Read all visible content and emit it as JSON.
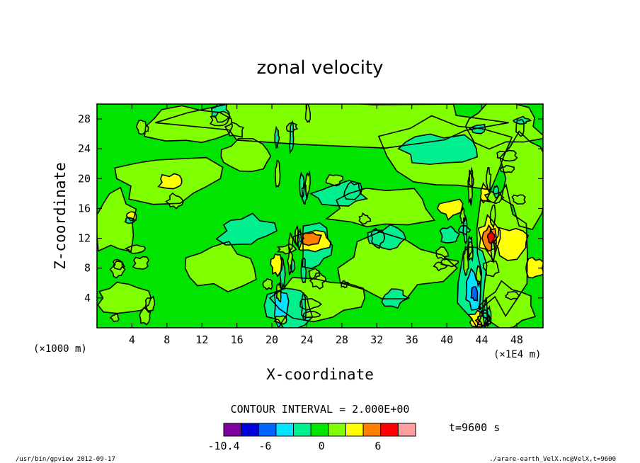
{
  "chart_data": {
    "type": "heatmap",
    "title": "zonal velocity",
    "xlabel": "X-coordinate",
    "ylabel": "Z-coordinate",
    "x_unit": "(×1E4 m)",
    "y_unit": "(×1000 m)",
    "xlim": [
      0,
      51
    ],
    "ylim": [
      0,
      30
    ],
    "x_ticks": [
      4,
      8,
      12,
      16,
      20,
      24,
      28,
      32,
      36,
      40,
      44,
      48
    ],
    "y_ticks": [
      4,
      8,
      12,
      16,
      20,
      24,
      28
    ],
    "contour_interval_text": "CONTOUR INTERVAL = 2.000E+00",
    "time_text": "t=9600 s",
    "colorbar": {
      "colors": [
        "#7f00a0",
        "#0000dc",
        "#0064ff",
        "#00e4ff",
        "#00f090",
        "#00e400",
        "#80ff00",
        "#ffff00",
        "#ff8000",
        "#ff0000",
        "#ffa0a0"
      ],
      "tick_labels": [
        {
          "label": "-10.4",
          "value": -10.4
        },
        {
          "label": "-6",
          "value": -6
        },
        {
          "label": "0",
          "value": 0
        },
        {
          "label": "6",
          "value": 6
        }
      ],
      "range": [
        -10.4,
        10
      ]
    },
    "features": [
      {
        "kind": "positive-core",
        "x": 45,
        "z": 12,
        "level": 6
      },
      {
        "kind": "positive-core",
        "x": 24.5,
        "z": 12,
        "level": 6
      },
      {
        "kind": "positive-core",
        "x": 44,
        "z": 1,
        "level": 6
      },
      {
        "kind": "negative-core",
        "x": 43.2,
        "z": 4.5,
        "level": -6
      },
      {
        "kind": "negative-core",
        "x": 21,
        "z": 2.5,
        "level": -4
      }
    ]
  },
  "footer": {
    "left": "/usr/bin/gpview   2012-09-17",
    "right": "./arare-earth_VelX.nc@VelX,t=9600"
  }
}
